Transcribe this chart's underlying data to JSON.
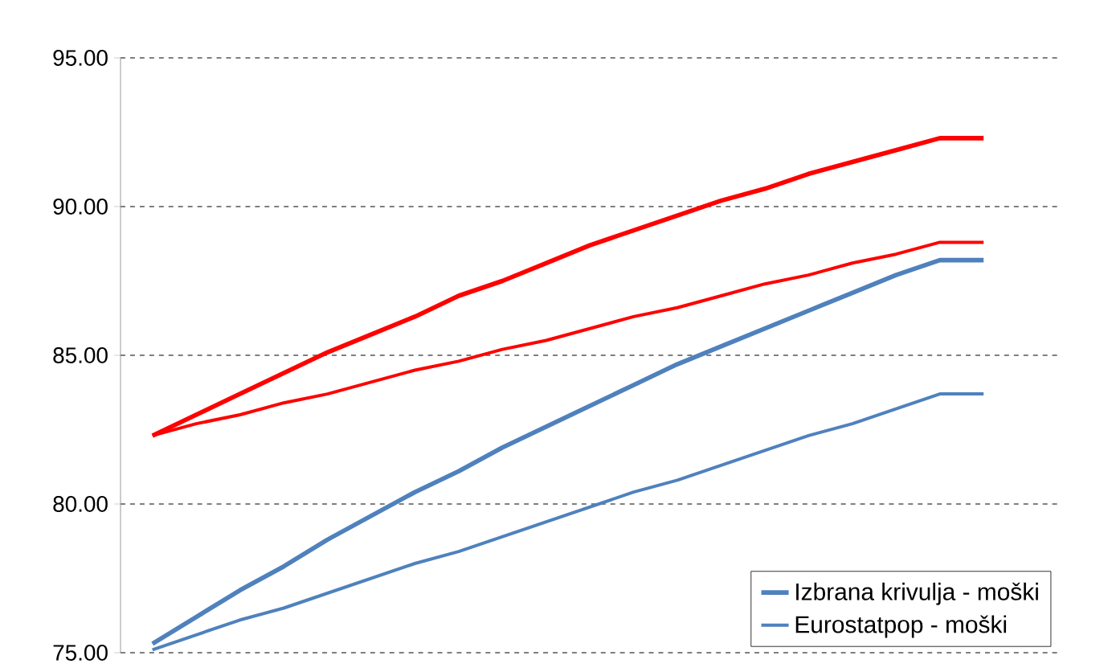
{
  "chart_data": {
    "type": "line",
    "categories": [
      null,
      null,
      null,
      null,
      null,
      null,
      null,
      null,
      null,
      null,
      null,
      null,
      null,
      null,
      null,
      null,
      null,
      null,
      null,
      null
    ],
    "series": [
      {
        "color": "#ff0000",
        "values": [
          82.3,
          83.0,
          83.7,
          84.4,
          85.1,
          85.7,
          86.3,
          87.0,
          87.5,
          88.1,
          88.7,
          89.2,
          89.7,
          90.2,
          90.6,
          91.1,
          91.5,
          91.9,
          92.3,
          92.3
        ]
      },
      {
        "color": "#ff0000",
        "values": [
          82.3,
          82.7,
          83.0,
          83.4,
          83.7,
          84.1,
          84.5,
          84.8,
          85.2,
          85.5,
          85.9,
          86.3,
          86.6,
          87.0,
          87.4,
          87.7,
          88.1,
          88.4,
          88.8,
          88.8
        ]
      },
      {
        "name": "Izbrana krivulja - moški",
        "color": "#4f81bd",
        "values": [
          75.3,
          76.2,
          77.1,
          77.9,
          78.8,
          79.6,
          80.4,
          81.1,
          81.9,
          82.6,
          83.3,
          84.0,
          84.7,
          85.3,
          85.9,
          86.5,
          87.1,
          87.7,
          88.2,
          88.2
        ]
      },
      {
        "name": "Eurostatpop - moški",
        "color": "#4f81bd",
        "values": [
          75.1,
          75.6,
          76.1,
          76.5,
          77.0,
          77.5,
          78.0,
          78.4,
          78.9,
          79.4,
          79.9,
          80.4,
          80.8,
          81.3,
          81.8,
          82.3,
          82.7,
          83.2,
          83.7,
          83.7
        ]
      }
    ],
    "ylim": [
      75,
      95
    ],
    "yticks": [
      {
        "value": 75,
        "label": "75.00"
      },
      {
        "value": 80,
        "label": "80.00"
      },
      {
        "value": 85,
        "label": "85.00"
      },
      {
        "value": 90,
        "label": "90.00"
      },
      {
        "value": 95,
        "label": "95.00"
      }
    ],
    "grid": "y",
    "legend": "bottom right",
    "tick_labels": "y",
    "marker": "none",
    "line_style": "solid"
  }
}
